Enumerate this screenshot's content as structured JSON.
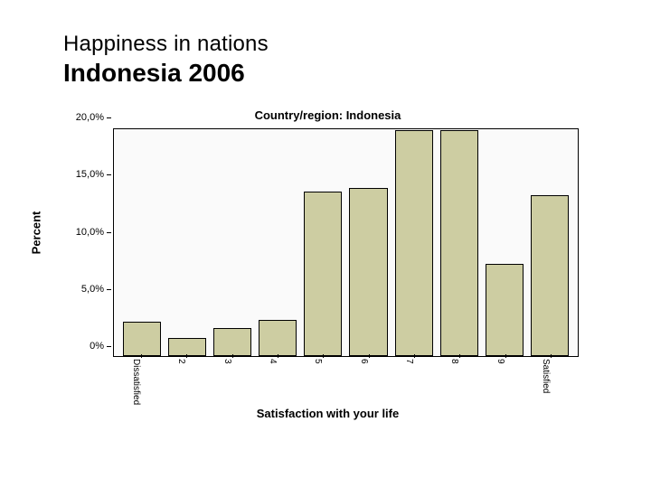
{
  "header": {
    "supertitle": "Happiness in nations",
    "title": "Indonesia 2006"
  },
  "chart": {
    "type": "bar",
    "title": "Country/region: Indonesia",
    "xlabel": "Satisfaction with your life",
    "ylabel": "Percent",
    "categories": [
      "Dissatisfied",
      "2",
      "3",
      "4",
      "5",
      "6",
      "7",
      "8",
      "9",
      "Satisfied"
    ],
    "values": [
      3.0,
      1.6,
      2.5,
      3.2,
      14.5,
      14.8,
      19.9,
      19.9,
      8.1,
      14.2
    ],
    "ymax": 20.0,
    "yticks": [
      0,
      5,
      10,
      15,
      20
    ],
    "ytick_labels": [
      "0%",
      "5,0%",
      "10,0%",
      "15,0%",
      "20,0%"
    ],
    "bar_fill": "#cdcda2",
    "bar_stroke": "#000000",
    "plot_bg": "#fafafa",
    "page_bg": "#ffffff",
    "title_fontsize": 13,
    "axis_label_fontsize": 13,
    "tick_fontsize": 11,
    "xtick_rotation_deg": 90,
    "bar_gap_ratio": 0.18
  }
}
